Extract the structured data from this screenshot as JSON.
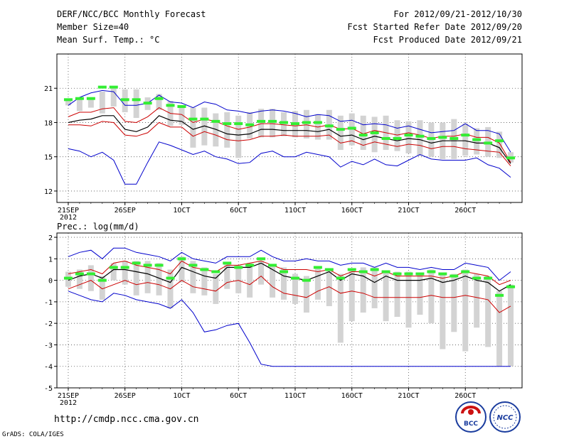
{
  "header": {
    "title": "DERF/NCC/BCC Monthly Forecast",
    "member_size": "Member Size=40",
    "variable": "Mean Surf. Temp.: °C",
    "period": "For 2012/09/21-2012/10/30",
    "refer_date": "Fcst Started Refer Date 2012/09/20",
    "produced_date": "Fcst Produced Date 2012/09/21"
  },
  "footer": {
    "url": "http://cmdp.ncc.cma.gov.cn",
    "credit": "GrADS: COLA/IGES",
    "logo_left_text": "BCC",
    "logo_right_text": "NCC"
  },
  "colors": {
    "ensemble_max_min": "#0000cc",
    "spread": "#cc0000",
    "mean": "#000000",
    "box": "#d3d3d3",
    "median": "#33ee33"
  },
  "chart_data": [
    {
      "type": "line",
      "name": "temperature",
      "title": "Mean Surf. Temp.: °C",
      "ylim": [
        11,
        24
      ],
      "yticks": [
        12,
        15,
        18,
        21
      ],
      "xlim": [
        0,
        41
      ],
      "xticks": [
        {
          "day": 1,
          "label": "21SEP"
        },
        {
          "day": 6,
          "label": "26SEP"
        },
        {
          "day": 11,
          "label": "1OCT"
        },
        {
          "day": 16,
          "label": "6OCT"
        },
        {
          "day": 21,
          "label": "11OCT"
        },
        {
          "day": 26,
          "label": "16OCT"
        },
        {
          "day": 31,
          "label": "21OCT"
        },
        {
          "day": 36,
          "label": "26OCT"
        }
      ],
      "year_label": "2012",
      "days": [
        1,
        2,
        3,
        4,
        5,
        6,
        7,
        8,
        9,
        10,
        11,
        12,
        13,
        14,
        15,
        16,
        17,
        18,
        19,
        20,
        21,
        22,
        23,
        24,
        25,
        26,
        27,
        28,
        29,
        30,
        31,
        32,
        33,
        34,
        35,
        36,
        37,
        38,
        39,
        40
      ],
      "max": [
        19.5,
        20.2,
        20.6,
        20.8,
        20.7,
        19.5,
        19.5,
        19.7,
        20.4,
        19.8,
        19.7,
        19.3,
        19.8,
        19.6,
        19.1,
        19.0,
        18.8,
        19.0,
        19.1,
        19.0,
        18.8,
        18.5,
        18.7,
        18.6,
        18.1,
        18.2,
        17.8,
        17.9,
        17.8,
        17.5,
        17.7,
        17.4,
        17.1,
        17.2,
        17.3,
        17.9,
        17.3,
        17.3,
        17.0,
        15.4
      ],
      "upper": [
        18.5,
        18.9,
        18.9,
        19.2,
        19.3,
        18.1,
        18.0,
        18.5,
        19.3,
        18.8,
        18.7,
        18.0,
        18.3,
        18.1,
        17.7,
        17.4,
        17.6,
        17.9,
        17.9,
        17.8,
        17.7,
        17.8,
        17.6,
        17.8,
        17.4,
        17.5,
        17.0,
        17.3,
        17.1,
        16.9,
        17.1,
        16.9,
        16.6,
        16.8,
        16.8,
        17.0,
        16.7,
        16.7,
        16.2,
        14.5
      ],
      "mean": [
        18.0,
        18.2,
        18.3,
        18.6,
        18.6,
        17.4,
        17.2,
        17.6,
        18.6,
        18.2,
        18.1,
        17.4,
        17.7,
        17.4,
        17.0,
        16.9,
        17.0,
        17.4,
        17.4,
        17.3,
        17.3,
        17.3,
        17.2,
        17.4,
        16.8,
        16.9,
        16.5,
        16.8,
        16.6,
        16.4,
        16.6,
        16.5,
        16.2,
        16.4,
        16.4,
        16.4,
        16.2,
        16.2,
        15.8,
        14.4
      ],
      "lower": [
        17.8,
        17.8,
        17.7,
        18.1,
        18.0,
        16.9,
        16.8,
        17.1,
        18.0,
        17.6,
        17.6,
        16.8,
        17.2,
        16.9,
        16.5,
        16.4,
        16.5,
        16.8,
        16.8,
        16.9,
        16.8,
        16.8,
        16.8,
        16.9,
        16.2,
        16.4,
        16.0,
        16.3,
        16.1,
        15.9,
        16.1,
        16.0,
        15.7,
        15.9,
        15.9,
        15.7,
        15.6,
        15.5,
        15.4,
        14.2
      ],
      "min": [
        15.7,
        15.5,
        15.0,
        15.4,
        14.7,
        12.6,
        12.6,
        14.5,
        16.3,
        16.0,
        15.6,
        15.2,
        15.5,
        15.0,
        14.8,
        14.4,
        14.5,
        15.3,
        15.5,
        15.0,
        15.0,
        15.4,
        15.2,
        15.0,
        14.1,
        14.6,
        14.3,
        14.8,
        14.3,
        14.2,
        14.7,
        15.2,
        14.8,
        14.7,
        14.7,
        14.7,
        14.9,
        14.3,
        14.0,
        13.2
      ],
      "box_top": [
        20.1,
        20.0,
        20.2,
        20.7,
        21.0,
        20.9,
        20.9,
        20.2,
        20.5,
        19.9,
        19.5,
        19.3,
        19.3,
        18.8,
        18.9,
        18.6,
        18.9,
        19.2,
        19.2,
        18.9,
        19.0,
        19.1,
        18.7,
        19.1,
        18.6,
        18.8,
        18.6,
        18.5,
        18.6,
        18.2,
        18.1,
        18.2,
        18.0,
        18.0,
        18.3,
        17.9,
        17.5,
        17.6,
        17.2,
        15.4
      ],
      "box_bottom": [
        19.5,
        19.0,
        19.3,
        18.8,
        19.4,
        18.9,
        18.4,
        19.1,
        19.1,
        17.7,
        17.8,
        15.8,
        16.0,
        15.9,
        15.8,
        14.9,
        16.6,
        16.7,
        16.7,
        16.8,
        16.7,
        16.6,
        16.5,
        16.5,
        15.6,
        16.0,
        15.6,
        15.4,
        15.6,
        15.5,
        15.3,
        15.1,
        15.0,
        14.8,
        14.8,
        15.1,
        15.2,
        15.0,
        14.9,
        14.5
      ],
      "median": [
        20.0,
        20.1,
        20.1,
        21.1,
        21.1,
        20.0,
        20.0,
        19.7,
        20.1,
        19.5,
        19.4,
        18.3,
        18.3,
        18.1,
        17.9,
        17.9,
        17.8,
        18.1,
        18.1,
        18.0,
        17.9,
        18.0,
        18.0,
        17.7,
        17.4,
        17.5,
        16.9,
        17.1,
        16.6,
        16.6,
        16.9,
        16.8,
        16.6,
        16.7,
        16.6,
        16.9,
        16.5,
        16.2,
        16.4,
        14.9
      ]
    },
    {
      "type": "line",
      "name": "precipitation",
      "title": "Prec.: log(mm/d)",
      "ylim": [
        -5,
        2.2
      ],
      "yticks": [
        -5,
        -4,
        -3,
        -2,
        -1,
        0,
        1,
        2
      ],
      "xlim": [
        0,
        41
      ],
      "xticks": [
        {
          "day": 1,
          "label": "21SEP"
        },
        {
          "day": 6,
          "label": "26SEP"
        },
        {
          "day": 11,
          "label": "1OCT"
        },
        {
          "day": 16,
          "label": "6OCT"
        },
        {
          "day": 21,
          "label": "11OCT"
        },
        {
          "day": 26,
          "label": "16OCT"
        },
        {
          "day": 31,
          "label": "21OCT"
        },
        {
          "day": 36,
          "label": "26OCT"
        }
      ],
      "year_label": "2012",
      "days": [
        1,
        2,
        3,
        4,
        5,
        6,
        7,
        8,
        9,
        10,
        11,
        12,
        13,
        14,
        15,
        16,
        17,
        18,
        19,
        20,
        21,
        22,
        23,
        24,
        25,
        26,
        27,
        28,
        29,
        30,
        31,
        32,
        33,
        34,
        35,
        36,
        37,
        38,
        39,
        40
      ],
      "max": [
        1.1,
        1.3,
        1.4,
        1.0,
        1.5,
        1.5,
        1.3,
        1.2,
        1.1,
        0.9,
        1.3,
        1.0,
        0.9,
        0.8,
        1.1,
        1.1,
        1.1,
        1.4,
        1.1,
        0.9,
        0.9,
        1.0,
        0.9,
        0.9,
        0.7,
        0.8,
        0.8,
        0.6,
        0.8,
        0.6,
        0.6,
        0.5,
        0.6,
        0.5,
        0.5,
        0.8,
        0.7,
        0.6,
        0.0,
        0.4
      ],
      "upper": [
        0.3,
        0.4,
        0.5,
        0.3,
        0.8,
        0.9,
        0.7,
        0.6,
        0.5,
        0.3,
        0.9,
        0.6,
        0.5,
        0.4,
        0.7,
        0.7,
        0.8,
        0.9,
        0.7,
        0.5,
        0.5,
        0.5,
        0.4,
        0.5,
        0.2,
        0.4,
        0.4,
        0.2,
        0.4,
        0.2,
        0.2,
        0.2,
        0.2,
        0.1,
        0.2,
        0.4,
        0.3,
        0.2,
        -0.2,
        0.0
      ],
      "mean": [
        0.0,
        0.2,
        0.3,
        0.1,
        0.5,
        0.5,
        0.4,
        0.3,
        0.1,
        -0.1,
        0.6,
        0.4,
        0.2,
        0.1,
        0.6,
        0.6,
        0.6,
        0.8,
        0.5,
        0.2,
        0.1,
        0.0,
        0.2,
        0.4,
        0.0,
        0.3,
        0.2,
        -0.1,
        0.2,
        0.0,
        0.0,
        0.0,
        0.1,
        -0.1,
        0.0,
        0.2,
        0.0,
        -0.1,
        -0.5,
        -0.2
      ],
      "lower": [
        -0.4,
        -0.2,
        0.0,
        -0.4,
        -0.2,
        0.0,
        -0.2,
        -0.1,
        -0.2,
        -0.4,
        0.0,
        -0.3,
        -0.4,
        -0.5,
        -0.1,
        0.0,
        -0.2,
        0.2,
        -0.3,
        -0.6,
        -0.7,
        -0.8,
        -0.5,
        -0.3,
        -0.6,
        -0.5,
        -0.6,
        -0.8,
        -0.8,
        -0.8,
        -0.8,
        -0.8,
        -0.7,
        -0.8,
        -0.8,
        -0.7,
        -0.8,
        -0.9,
        -1.5,
        -1.2
      ],
      "min": [
        -0.5,
        -0.7,
        -0.9,
        -1.0,
        -0.6,
        -0.7,
        -0.9,
        -1.0,
        -1.1,
        -1.3,
        -0.9,
        -1.5,
        -2.4,
        -2.3,
        -2.1,
        -2.0,
        -2.9,
        -3.9,
        -4.0,
        -4.0,
        -4.0,
        -4.0,
        -4.0,
        -4.0,
        -4.0,
        -4.0,
        -4.0,
        -4.0,
        -4.0,
        -4.0,
        -4.0,
        -4.0,
        -4.0,
        -4.0,
        -4.0,
        -4.0,
        -4.0,
        -4.0,
        -4.0,
        -4.0
      ],
      "box_top": [
        0.4,
        0.5,
        0.7,
        0.2,
        0.8,
        0.9,
        0.9,
        0.9,
        0.8,
        0.5,
        1.1,
        0.9,
        0.6,
        0.3,
        0.8,
        0.7,
        0.8,
        0.9,
        0.7,
        0.6,
        0.3,
        0.2,
        0.6,
        0.5,
        0.3,
        0.5,
        0.6,
        0.6,
        0.4,
        0.4,
        0.4,
        0.3,
        0.5,
        0.3,
        0.3,
        0.5,
        0.3,
        0.2,
        -0.5,
        -0.2
      ],
      "box_bottom": [
        -0.3,
        -0.4,
        -0.5,
        -0.9,
        0.0,
        -0.2,
        -0.7,
        -0.6,
        -0.7,
        -1.3,
        -0.1,
        -0.6,
        -0.7,
        -1.1,
        -0.4,
        -0.6,
        -0.8,
        -0.2,
        -0.8,
        -0.9,
        -1.1,
        -1.5,
        -0.9,
        -1.2,
        -2.9,
        -1.9,
        -1.5,
        -1.3,
        -1.9,
        -1.7,
        -2.2,
        -1.6,
        -2.0,
        -3.2,
        -2.4,
        -3.3,
        -2.2,
        -3.1,
        -4.0,
        -4.0
      ],
      "median": [
        0.1,
        0.3,
        0.3,
        0.0,
        0.6,
        0.6,
        0.8,
        0.7,
        0.7,
        0.1,
        1.0,
        0.7,
        0.5,
        0.4,
        0.8,
        0.6,
        0.7,
        1.0,
        0.7,
        0.4,
        0.1,
        0.0,
        0.6,
        0.5,
        0.1,
        0.5,
        0.4,
        0.5,
        0.4,
        0.3,
        0.3,
        0.3,
        0.4,
        0.3,
        0.2,
        0.4,
        0.1,
        0.1,
        -0.7,
        -0.3
      ]
    }
  ]
}
